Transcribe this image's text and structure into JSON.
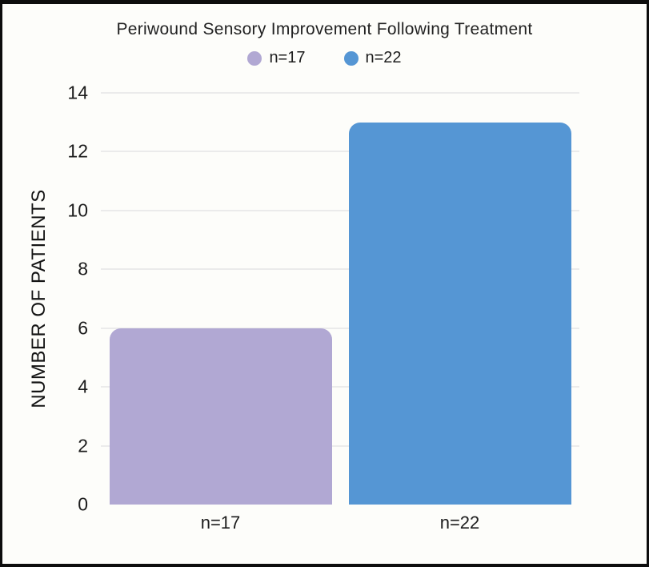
{
  "frame": {
    "background": "#fdfdfa",
    "border_color": "#0d0d0d"
  },
  "chart_data": {
    "type": "bar",
    "title": "Periwound Sensory Improvement Following Treatment",
    "categories": [
      "n=17",
      "n=22"
    ],
    "values": [
      6,
      13
    ],
    "series_colors": [
      "#b1a8d3",
      "#5596d4"
    ],
    "legend": [
      {
        "label": "n=17",
        "color": "#b1a8d3"
      },
      {
        "label": "n=22",
        "color": "#5596d4"
      }
    ],
    "legend_position": "top",
    "xlabel": "",
    "ylabel": "NUMBER OF PATIENTS",
    "ylim": [
      0,
      14
    ],
    "yticks": [
      0,
      2,
      4,
      6,
      8,
      10,
      12,
      14
    ],
    "grid": "horizontal",
    "grid_color": "#ebebeb",
    "text_color": "#1c1c1c"
  }
}
